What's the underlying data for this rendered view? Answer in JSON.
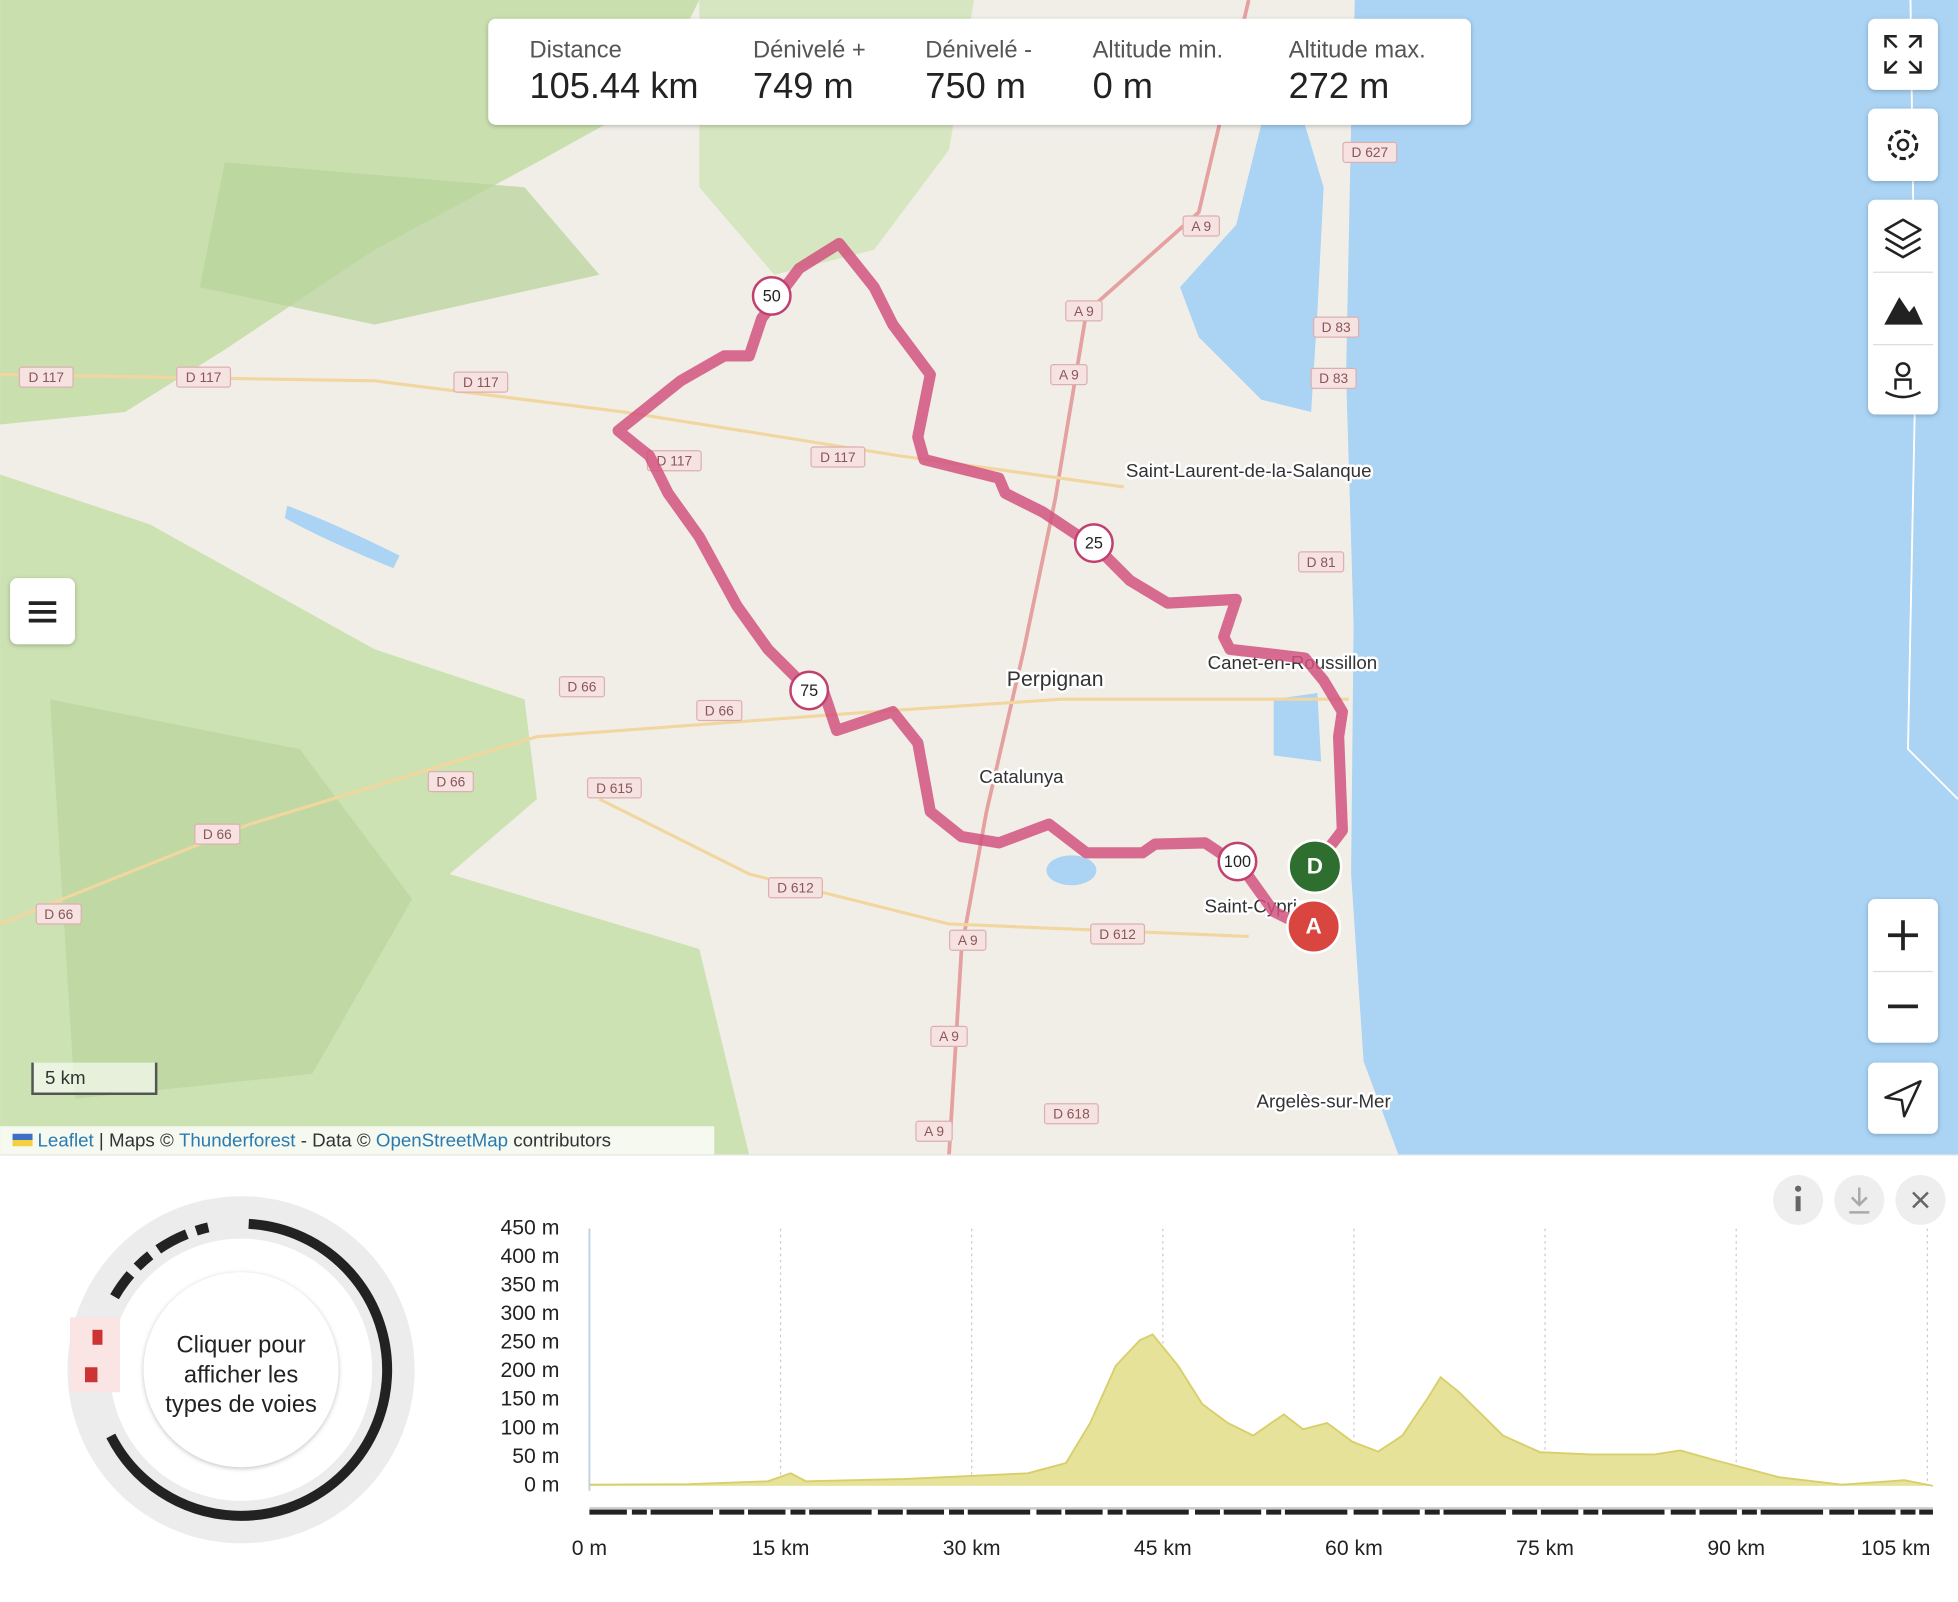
{
  "stats": [
    {
      "label": "Distance",
      "value": "105.44 km"
    },
    {
      "label": "Dénivelé +",
      "value": "749 m"
    },
    {
      "label": "Dénivelé -",
      "value": "750 m"
    },
    {
      "label": "Altitude min.",
      "value": "0 m"
    },
    {
      "label": "Altitude max.",
      "value": "272 m"
    }
  ],
  "map": {
    "places": [
      "Saint-Laurent-de-la-Salanque",
      "Perpignan",
      "Catalunya",
      "Canet-en-Roussillon",
      "Saint-Cyprien",
      "Argelès-sur-Mer"
    ],
    "roads": [
      "D 627",
      "A 9",
      "A 9",
      "A 9",
      "D 83",
      "D 83",
      "D 117",
      "D 117",
      "D 117",
      "D 117",
      "D 117",
      "D 81",
      "D 66",
      "D 66",
      "D 66",
      "D 66",
      "D 66",
      "D 615",
      "D 612",
      "D 612",
      "A 9",
      "A 9",
      "D 618",
      "A 9"
    ],
    "route_markers": [
      "25",
      "50",
      "75",
      "100"
    ],
    "start_label": "D",
    "end_label": "A",
    "scale": "5 km"
  },
  "attribution": [
    "Leaflet",
    " | Maps © ",
    "Thunderforest",
    " - Data © ",
    "OpenStreetMap",
    " contributors"
  ],
  "road_types_button": [
    "Cliquer pour",
    "afficher les",
    "types de voies"
  ],
  "elevation_profile": {
    "type": "area",
    "x": [
      0,
      7.8,
      14,
      15.8,
      17,
      24.6,
      34.4,
      37.4,
      39.3,
      41.3,
      43.2,
      44.2,
      46.2,
      48.1,
      50.1,
      52.1,
      53.5,
      54.5,
      56,
      57.9,
      59.9,
      61.9,
      63.8,
      65.8,
      66.8,
      68.2,
      69.7,
      71.7,
      74.6,
      78.6,
      83.6,
      85.6,
      88.5,
      93.4,
      98.3,
      103.2,
      105.44
    ],
    "values": [
      2,
      3,
      8,
      22,
      8,
      12,
      22,
      40,
      110,
      210,
      255,
      265,
      210,
      143,
      110,
      88,
      110,
      125,
      99,
      110,
      77,
      60,
      88,
      154,
      190,
      165,
      132,
      88,
      59,
      55,
      55,
      62,
      44,
      15,
      2,
      10,
      0
    ],
    "color": "#e6e29a",
    "xlim": [
      0,
      105.44
    ],
    "ylim": [
      0,
      450
    ],
    "xticks": [
      {
        "value": 0,
        "label": "0 m"
      },
      {
        "value": 15,
        "label": "15 km"
      },
      {
        "value": 30,
        "label": "30 km"
      },
      {
        "value": 45,
        "label": "45 km"
      },
      {
        "value": 60,
        "label": "60 km"
      },
      {
        "value": 75,
        "label": "75 km"
      },
      {
        "value": 90,
        "label": "90 km"
      },
      {
        "value": 105,
        "label": "105 km"
      }
    ],
    "yticks": [
      {
        "value": 0,
        "label": "0 m"
      },
      {
        "value": 50,
        "label": "50 m"
      },
      {
        "value": 100,
        "label": "100 m"
      },
      {
        "value": 150,
        "label": "150 m"
      },
      {
        "value": 200,
        "label": "200 m"
      },
      {
        "value": 250,
        "label": "250 m"
      },
      {
        "value": 300,
        "label": "300 m"
      },
      {
        "value": 350,
        "label": "350 m"
      },
      {
        "value": 400,
        "label": "400 m"
      },
      {
        "value": 450,
        "label": "450 m"
      }
    ],
    "grid": true
  }
}
